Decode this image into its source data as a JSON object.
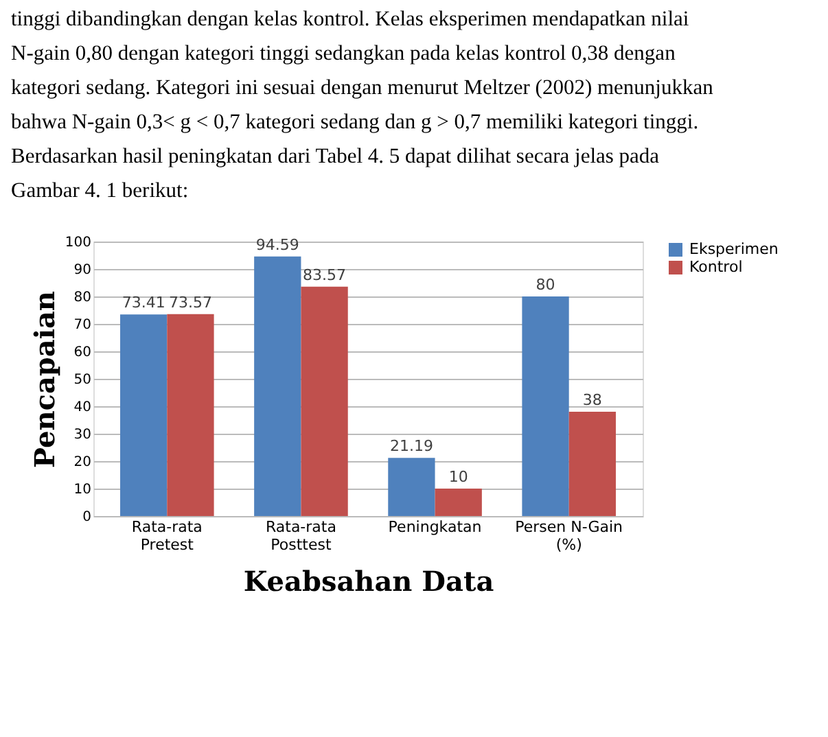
{
  "chart_data": {
    "type": "bar",
    "annotations": [
      "tinggi dibandingkan dengan kelas kontrol. Kelas eksperimen mendapatkan nilai",
      "N-gain 0,80 dengan kategori tinggi sedangkan pada kelas kontrol 0,38 dengan",
      "kategori sedang. Kategori ini sesuai dengan menurut Meltzer (2002) menunjukkan",
      "bahwa  N-gain 0,3< g < 0,7 kategori sedang dan g > 0,7 memiliki kategori tinggi.",
      "Berdasarkan hasil peningkatan dari Tabel 4. 5 dapat dilihat secara jelas pada",
      "Gambar 4. 1 berikut:"
    ],
    "xlabel": "Keabsahan Data",
    "ylabel": "Pencapaian",
    "categories": [
      "Rata-rata Pretest",
      "Rata-rata Posttest",
      "Peningkatan",
      "Persen N-Gain (%)"
    ],
    "series": [
      {
        "name": "Eksperimen",
        "color": "#4f81bd",
        "values": [
          73.41,
          94.59,
          21.19,
          80
        ]
      },
      {
        "name": "Kontrol",
        "color": "#c0504d",
        "values": [
          73.57,
          83.57,
          10,
          38
        ]
      }
    ],
    "ylim": [
      0,
      100
    ],
    "yticks": [
      0,
      10,
      20,
      30,
      40,
      50,
      60,
      70,
      80,
      90,
      100
    ],
    "grid": "y",
    "legend": "right",
    "data_labels": true
  }
}
